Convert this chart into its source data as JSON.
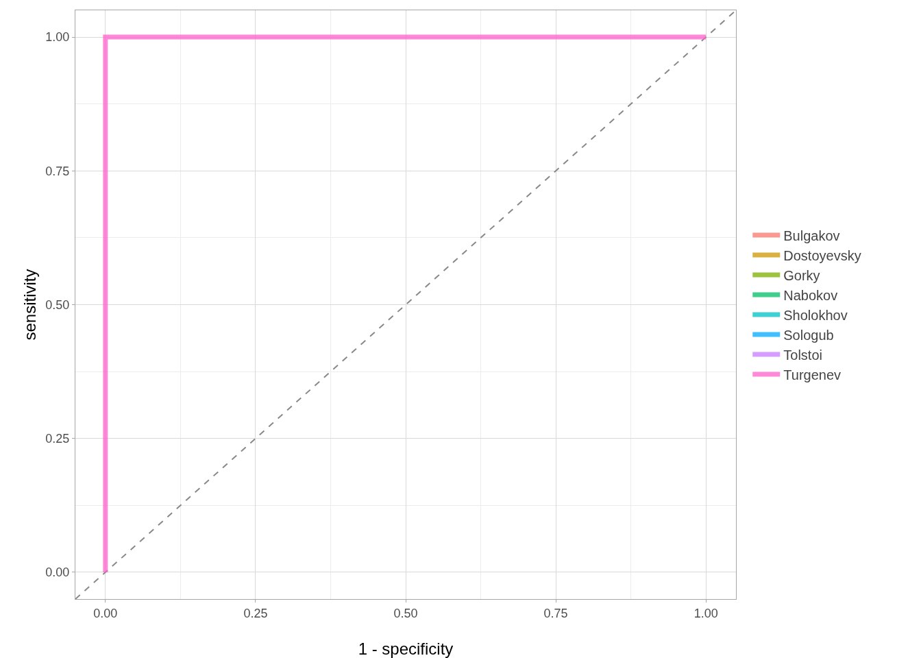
{
  "chart_data": {
    "type": "line",
    "xlabel": "1 - specificity",
    "ylabel": "sensitivity",
    "xlim": [
      -0.05,
      1.05
    ],
    "ylim": [
      -0.05,
      1.05
    ],
    "xticks": [
      {
        "value": 0,
        "label": "0.00"
      },
      {
        "value": 0.25,
        "label": "0.25"
      },
      {
        "value": 0.5,
        "label": "0.50"
      },
      {
        "value": 0.75,
        "label": "0.75"
      },
      {
        "value": 1,
        "label": "1.00"
      }
    ],
    "yticks": [
      {
        "value": 0,
        "label": "0.00"
      },
      {
        "value": 0.25,
        "label": "0.25"
      },
      {
        "value": 0.5,
        "label": "0.50"
      },
      {
        "value": 0.75,
        "label": "0.75"
      },
      {
        "value": 1,
        "label": "1.00"
      }
    ],
    "grid": true,
    "legend": "right",
    "marker": "none",
    "line_style": "solid",
    "series": [
      {
        "name": "Bulgakov",
        "color": "#f8766d"
      },
      {
        "name": "Dostoyevsky",
        "color": "#cd9600"
      },
      {
        "name": "Gorky",
        "color": "#7cae00"
      },
      {
        "name": "Nabokov",
        "color": "#00be67"
      },
      {
        "name": "Sholokhov",
        "color": "#00bfc4"
      },
      {
        "name": "Sologub",
        "color": "#00a9ff"
      },
      {
        "name": "Tolstoi",
        "color": "#c77cff"
      },
      {
        "name": "Turgenev",
        "color": "#ff61cc",
        "x": [
          0,
          0,
          1
        ],
        "values": [
          0,
          1,
          1
        ]
      },
      {
        "color": "#888888",
        "line_style": "dashed",
        "x": [
          -0.05,
          1.05
        ],
        "values": [
          -0.05,
          1.05
        ]
      }
    ]
  }
}
